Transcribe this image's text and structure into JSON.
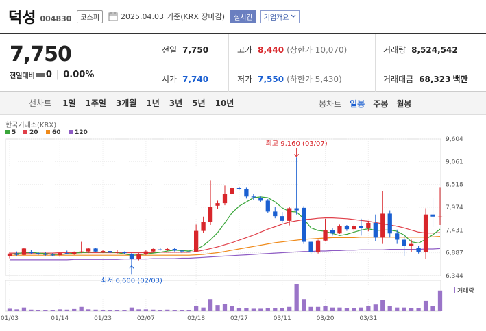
{
  "header": {
    "name": "덕성",
    "code": "004830",
    "market": "코스피",
    "date": "2025.04.03",
    "basis": "기준(KRX 장마감)",
    "live": "실시간",
    "info_button": "기업개요"
  },
  "quote": {
    "price": "7,750",
    "change_label": "전일대비",
    "change": "0",
    "change_pct": "0.00%",
    "prev_label": "전일",
    "prev": "7,750",
    "high_label": "고가",
    "high": "8,440",
    "upper_limit": "(상한가 10,070)",
    "volume_label": "거래량",
    "volume": "8,524,542",
    "open_label": "시가",
    "open": "7,740",
    "low_label": "저가",
    "low": "7,550",
    "lower_limit": "(하한가 5,430)",
    "value_label": "거래대금",
    "value": "68,323",
    "value_unit": "백만"
  },
  "period": {
    "title": "선차트",
    "items": [
      "1일",
      "1주일",
      "3개월",
      "1년",
      "3년",
      "5년",
      "10년"
    ],
    "candle_title": "봉차트",
    "candle_items": [
      "일봉",
      "주봉",
      "월봉"
    ],
    "active": "일봉"
  },
  "colors": {
    "up": "#d8262b",
    "down": "#1a5fd1",
    "ma5": "#3aa63a",
    "ma20": "#e0404a",
    "ma60": "#ef8a1a",
    "ma120": "#8e5cc4"
  },
  "chart_data": {
    "type": "candlestick",
    "source": "한국거래소(KRX)",
    "legend": [
      {
        "name": "5",
        "color": "#3aa63a"
      },
      {
        "name": "20",
        "color": "#e0404a"
      },
      {
        "name": "60",
        "color": "#ef8a1a"
      },
      {
        "name": "120",
        "color": "#8e5cc4"
      }
    ],
    "y_ticks": [
      "9,604",
      "9,061",
      "8,518",
      "7,974",
      "7,431",
      "6,887",
      "6,344"
    ],
    "ylim": [
      6344,
      9604
    ],
    "x_ticks": [
      "01/03",
      "01/14",
      "01/23",
      "02/07",
      "02/18",
      "02/27",
      "03/11",
      "03/20",
      "03/31"
    ],
    "x_tick_index": [
      0,
      7,
      13,
      19,
      26,
      32,
      38,
      44,
      50
    ],
    "candles": [
      [
        6810,
        6900,
        6760,
        6870
      ],
      [
        6870,
        6920,
        6820,
        6840
      ],
      [
        6840,
        7000,
        6830,
        6990
      ],
      [
        6900,
        6950,
        6850,
        6880
      ],
      [
        6880,
        6910,
        6830,
        6860
      ],
      [
        6860,
        6900,
        6820,
        6840
      ],
      [
        6840,
        6880,
        6800,
        6830
      ],
      [
        6830,
        6900,
        6790,
        6880
      ],
      [
        6880,
        6940,
        6850,
        6860
      ],
      [
        6860,
        6920,
        6840,
        6910
      ],
      [
        6910,
        7150,
        6880,
        6920
      ],
      [
        6920,
        7010,
        6880,
        6990
      ],
      [
        6990,
        7010,
        6900,
        6920
      ],
      [
        6920,
        6960,
        6880,
        6930
      ],
      [
        6930,
        6950,
        6870,
        6890
      ],
      [
        6890,
        6950,
        6870,
        6900
      ],
      [
        6900,
        6920,
        6850,
        6880
      ],
      [
        6850,
        6880,
        6600,
        6740
      ],
      [
        6740,
        6880,
        6710,
        6860
      ],
      [
        6860,
        6950,
        6830,
        6920
      ],
      [
        6920,
        6990,
        6900,
        6980
      ],
      [
        6970,
        7010,
        6940,
        6960
      ],
      [
        6960,
        7000,
        6930,
        6980
      ],
      [
        6980,
        7000,
        6920,
        6940
      ],
      [
        6940,
        6960,
        6880,
        6920
      ],
      [
        6920,
        6950,
        6890,
        6900
      ],
      [
        6920,
        7560,
        6900,
        7410
      ],
      [
        7410,
        7750,
        7370,
        7620
      ],
      [
        7620,
        8620,
        7550,
        7990
      ],
      [
        8010,
        8130,
        7930,
        8070
      ],
      [
        8070,
        8490,
        8020,
        8300
      ],
      [
        8300,
        8490,
        8270,
        8430
      ],
      [
        8430,
        8450,
        8390,
        8410
      ],
      [
        8410,
        8440,
        8180,
        8230
      ],
      [
        8230,
        8300,
        8150,
        8210
      ],
      [
        8200,
        8230,
        8100,
        8130
      ],
      [
        8130,
        8170,
        7840,
        7870
      ],
      [
        7870,
        7990,
        7710,
        7760
      ],
      [
        7760,
        7860,
        7600,
        7650
      ],
      [
        7650,
        7990,
        7540,
        7950
      ],
      [
        7950,
        9160,
        7800,
        7900
      ],
      [
        7960,
        8000,
        7100,
        7150
      ],
      [
        7150,
        7160,
        6850,
        6900
      ],
      [
        6900,
        7200,
        6870,
        7180
      ],
      [
        7180,
        7700,
        7160,
        7420
      ],
      [
        7420,
        7480,
        7300,
        7350
      ],
      [
        7350,
        7560,
        7340,
        7530
      ],
      [
        7530,
        7550,
        7410,
        7450
      ],
      [
        7450,
        7560,
        7350,
        7520
      ],
      [
        7520,
        7700,
        7300,
        7480
      ],
      [
        7480,
        7650,
        7400,
        7600
      ],
      [
        7600,
        7800,
        7160,
        7250
      ],
      [
        7250,
        8360,
        7100,
        7820
      ],
      [
        7820,
        7900,
        7250,
        7350
      ],
      [
        7350,
        7440,
        7100,
        7200
      ],
      [
        7200,
        7300,
        6800,
        7050
      ],
      [
        7050,
        7200,
        6900,
        7100
      ],
      [
        7000,
        7060,
        6870,
        6900
      ],
      [
        6900,
        7950,
        6750,
        7800
      ],
      [
        7800,
        8200,
        7500,
        7750
      ],
      [
        7740,
        8440,
        7550,
        7750
      ]
    ],
    "ma5": [
      6850,
      6870,
      6890,
      6900,
      6880,
      6870,
      6850,
      6850,
      6860,
      6880,
      6890,
      6900,
      6910,
      6900,
      6900,
      6890,
      6860,
      6830,
      6840,
      6860,
      6880,
      6900,
      6930,
      6950,
      6940,
      6930,
      6970,
      7060,
      7200,
      7370,
      7600,
      7840,
      8000,
      8100,
      8200,
      8220,
      8200,
      8100,
      7960,
      7870,
      7860,
      7700,
      7480,
      7420,
      7400,
      7350,
      7300,
      7330,
      7380,
      7430,
      7460,
      7420,
      7430,
      7430,
      7400,
      7310,
      7150,
      7120,
      7210,
      7320,
      7450
    ],
    "ma20": [
      6880,
      6880,
      6880,
      6880,
      6880,
      6880,
      6880,
      6890,
      6890,
      6890,
      6890,
      6890,
      6890,
      6890,
      6890,
      6890,
      6890,
      6890,
      6890,
      6890,
      6890,
      6900,
      6900,
      6900,
      6900,
      6900,
      6920,
      6950,
      6990,
      7030,
      7080,
      7130,
      7190,
      7250,
      7310,
      7380,
      7450,
      7510,
      7570,
      7620,
      7650,
      7680,
      7690,
      7710,
      7720,
      7720,
      7710,
      7700,
      7680,
      7660,
      7640,
      7610,
      7580,
      7550,
      7520,
      7480,
      7430,
      7380,
      7360,
      7360,
      7370
    ],
    "ma60": [
      6830,
      6830,
      6830,
      6830,
      6830,
      6830,
      6830,
      6830,
      6830,
      6830,
      6830,
      6830,
      6830,
      6830,
      6830,
      6830,
      6830,
      6830,
      6830,
      6830,
      6830,
      6830,
      6830,
      6830,
      6830,
      6830,
      6840,
      6850,
      6870,
      6890,
      6920,
      6950,
      6980,
      7010,
      7040,
      7070,
      7100,
      7130,
      7150,
      7170,
      7190,
      7210,
      7220,
      7230,
      7240,
      7250,
      7250,
      7250,
      7250,
      7260,
      7260,
      7260,
      7260,
      7260,
      7260,
      7260,
      7260,
      7260,
      7260,
      7270,
      7280
    ],
    "ma120": [
      6720,
      6720,
      6720,
      6720,
      6720,
      6720,
      6720,
      6720,
      6720,
      6730,
      6730,
      6730,
      6730,
      6730,
      6730,
      6730,
      6740,
      6740,
      6740,
      6740,
      6750,
      6750,
      6750,
      6750,
      6760,
      6760,
      6770,
      6780,
      6790,
      6800,
      6810,
      6820,
      6830,
      6840,
      6850,
      6860,
      6870,
      6880,
      6890,
      6900,
      6910,
      6920,
      6920,
      6930,
      6930,
      6940,
      6940,
      6950,
      6950,
      6960,
      6960,
      6960,
      6960,
      6970,
      6970,
      6970,
      6970,
      6970,
      6980,
      6980,
      6990
    ],
    "volume": [
      8,
      6,
      12,
      5,
      4,
      4,
      4,
      6,
      5,
      7,
      14,
      6,
      5,
      4,
      4,
      4,
      4,
      12,
      6,
      6,
      5,
      4,
      5,
      4,
      3,
      3,
      18,
      12,
      40,
      20,
      24,
      16,
      10,
      10,
      8,
      8,
      10,
      10,
      9,
      14,
      90,
      40,
      14,
      14,
      16,
      12,
      12,
      10,
      10,
      12,
      16,
      22,
      36,
      16,
      12,
      12,
      10,
      10,
      34,
      16,
      68
    ],
    "volume_label": "거래량",
    "high_annotation": "최고 9,160 (03/07)",
    "high_index": 40,
    "low_annotation": "최저 6,600 (02/03)",
    "low_index": 17
  }
}
